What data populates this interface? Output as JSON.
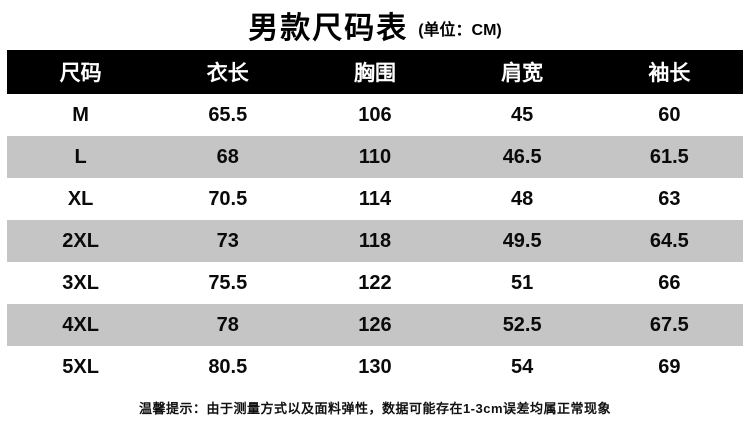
{
  "title": {
    "main": "男款尺码表",
    "unit": "(单位：CM)"
  },
  "chart_data": {
    "type": "table",
    "title": "男款尺码表 (单位：CM)",
    "columns": [
      "尺码",
      "衣长",
      "胸围",
      "肩宽",
      "袖长"
    ],
    "rows": [
      [
        "M",
        "65.5",
        "106",
        "45",
        "60"
      ],
      [
        "L",
        "68",
        "110",
        "46.5",
        "61.5"
      ],
      [
        "XL",
        "70.5",
        "114",
        "48",
        "63"
      ],
      [
        "2XL",
        "73",
        "118",
        "49.5",
        "64.5"
      ],
      [
        "3XL",
        "75.5",
        "122",
        "51",
        "66"
      ],
      [
        "4XL",
        "78",
        "126",
        "52.5",
        "67.5"
      ],
      [
        "5XL",
        "80.5",
        "130",
        "54",
        "69"
      ]
    ],
    "unit": "CM",
    "layout": {
      "header_style": "black-bar-white-text",
      "zebra_rows": [
        "L",
        "2XL",
        "4XL"
      ]
    },
    "note": "温馨提示：由于测量方式以及面料弹性，数据可能存在1-3cm误差均属正常现象"
  },
  "footer": {
    "note": "温馨提示：由于测量方式以及面料弹性，数据可能存在1-3cm误差均属正常现象"
  },
  "colors": {
    "header_bg": "#000000",
    "header_text": "#ffffff",
    "row_alt_bg": "#c5c5c5",
    "row_bg": "#ffffff",
    "text": "#0a0a0a"
  }
}
